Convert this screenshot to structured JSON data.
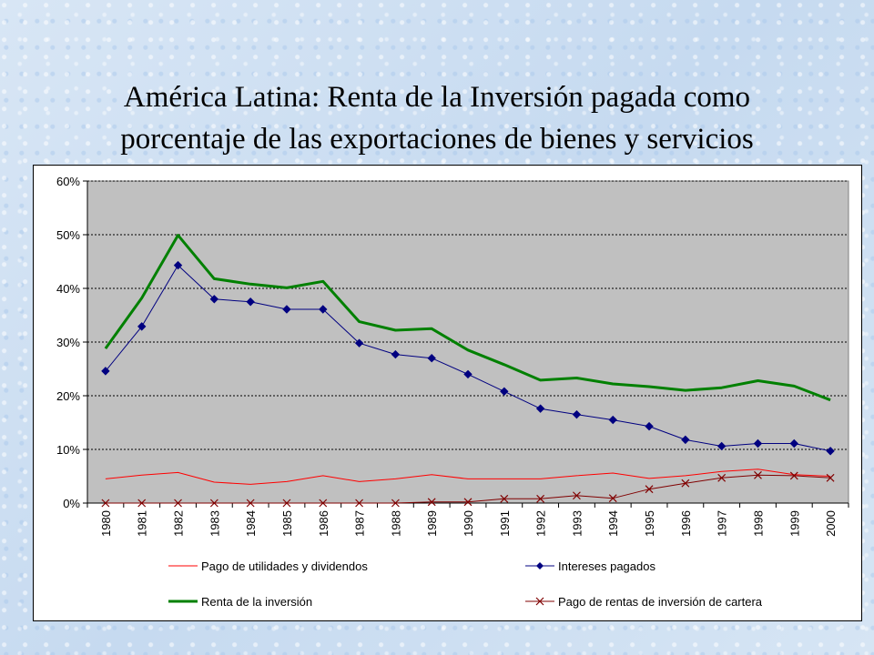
{
  "page_title": {
    "line1": "América Latina: Renta de la Inversión pagada como",
    "line2": "porcentaje de las exportaciones de bienes y servicios"
  },
  "chart_data": {
    "type": "line",
    "title": "América Latina: Renta de la Inversión pagada como porcentaje de las exportaciones de bienes y servicios",
    "xlabel": "",
    "ylabel": "",
    "categories": [
      "1980",
      "1981",
      "1982",
      "1983",
      "1984",
      "1985",
      "1986",
      "1987",
      "1988",
      "1989",
      "1990",
      "1991",
      "1992",
      "1993",
      "1994",
      "1995",
      "1996",
      "1997",
      "1998",
      "1999",
      "2000"
    ],
    "ylim": [
      0,
      60
    ],
    "yticks": [
      0,
      10,
      20,
      30,
      40,
      50,
      60
    ],
    "ytick_labels": [
      "0%",
      "10%",
      "20%",
      "30%",
      "40%",
      "50%",
      "60%"
    ],
    "grid": "horizontal dotted",
    "plot_background": "#c0c0c0",
    "legend_position": "bottom",
    "series": [
      {
        "name": "Pago de utilidades y dividendos",
        "color": "#ff0000",
        "marker": "none",
        "width": 1,
        "values": [
          4.5,
          5.2,
          5.7,
          3.9,
          3.5,
          4.0,
          5.1,
          4.0,
          4.5,
          5.3,
          4.5,
          4.5,
          4.5,
          5.1,
          5.6,
          4.6,
          5.1,
          5.9,
          6.3,
          5.3,
          5.0
        ]
      },
      {
        "name": "Intereses pagados",
        "color": "#000080",
        "marker": "diamond",
        "width": 1,
        "values": [
          24.6,
          32.9,
          44.3,
          38.0,
          37.5,
          36.1,
          36.1,
          29.8,
          27.7,
          27.0,
          24.0,
          20.8,
          17.6,
          16.5,
          15.5,
          14.3,
          11.8,
          10.6,
          11.1,
          11.1,
          9.7
        ]
      },
      {
        "name": "Renta de la inversión",
        "color": "#008000",
        "marker": "none",
        "width": 3,
        "values": [
          28.8,
          38.2,
          49.9,
          41.8,
          40.8,
          40.1,
          41.3,
          33.8,
          32.2,
          32.5,
          28.5,
          25.8,
          22.9,
          23.3,
          22.2,
          21.7,
          21.0,
          21.5,
          22.8,
          21.8,
          19.2
        ]
      },
      {
        "name": "Pago de rentas de inversión de cartera",
        "color": "#800000",
        "marker": "x",
        "width": 1,
        "values": [
          0.0,
          0.0,
          0.0,
          0.0,
          0.0,
          0.0,
          0.0,
          0.0,
          0.0,
          0.2,
          0.2,
          0.8,
          0.8,
          1.4,
          0.9,
          2.6,
          3.7,
          4.7,
          5.2,
          5.1,
          4.7
        ]
      }
    ]
  }
}
